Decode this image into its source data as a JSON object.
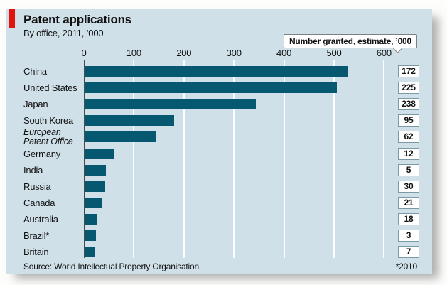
{
  "header": {
    "title": "Patent applications",
    "subtitle": "By office, 2011, ’000"
  },
  "callout": {
    "label": "Number granted, estimate, ’000"
  },
  "chart_data": {
    "type": "bar",
    "orientation": "horizontal",
    "title": "Patent applications",
    "subtitle": "By office, 2011, ’000",
    "categories": [
      "China",
      "United States",
      "Japan",
      "South Korea",
      "European Patent Office",
      "Germany",
      "India",
      "Russia",
      "Canada",
      "Australia",
      "Brazil*",
      "Britain"
    ],
    "values": [
      526,
      504,
      343,
      179,
      143,
      59,
      42,
      41,
      35,
      26,
      23,
      22
    ],
    "granted_values": [
      172,
      225,
      238,
      95,
      62,
      12,
      5,
      30,
      21,
      18,
      3,
      7
    ],
    "granted_label": "Number granted, estimate, ’000",
    "x_ticks": [
      0,
      100,
      200,
      300,
      400,
      500,
      600
    ],
    "xlim": [
      0,
      640
    ],
    "italic_category_index": 4,
    "grid": true,
    "unit": "thousands"
  },
  "footer": {
    "source": "Source: World Intellectual Property Organisation",
    "note": "*2010"
  },
  "colors": {
    "panel_background": "#cfe0e9",
    "bar": "#05586f",
    "accent_red": "#e3120b",
    "gridline": "#ffffff",
    "zero_axis": "#4a4a4a",
    "value_box_border": "#7c9aa6",
    "text": "#111111"
  }
}
